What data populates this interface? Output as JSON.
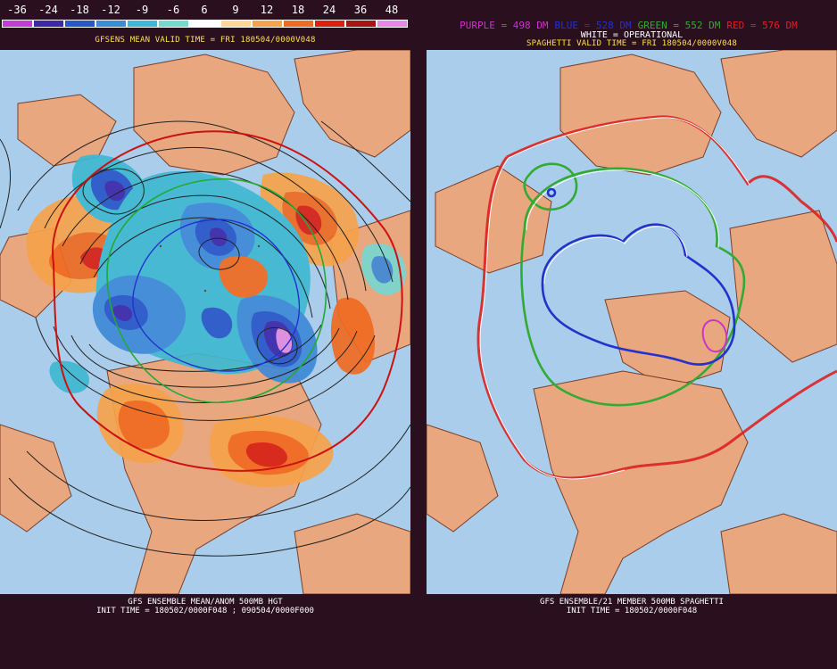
{
  "left": {
    "colorbar": {
      "labels": [
        "-36",
        "-24",
        "-18",
        "-12",
        "-9",
        "-6",
        "6",
        "9",
        "12",
        "18",
        "24",
        "36",
        "48"
      ],
      "colors": [
        "#c43cd6",
        "#3c28a8",
        "#2a56c8",
        "#3f89d8",
        "#3fb8d2",
        "#79d7d0",
        "#ffffff",
        "#fbd7a0",
        "#f7a24b",
        "#f06b22",
        "#d82016",
        "#a81414",
        "#e28be0"
      ]
    },
    "title": "GFSENS MEAN VALID TIME = FRI 180504/0000V048",
    "footer_line1": "GFS ENSEMBLE MEAN/ANOM 500MB HGT",
    "footer_line2": "INIT TIME = 180502/0000F048 ; 090504/0000F000"
  },
  "right": {
    "legend": [
      {
        "text": "PURPLE = 498 DM",
        "color": "#cc33cc"
      },
      {
        "text": "BLUE = 528 DM",
        "color": "#2233cc"
      },
      {
        "text": "GREEN = 552 DM",
        "color": "#33aa33"
      },
      {
        "text": "RED = 576 DM",
        "color": "#dd2222"
      }
    ],
    "operational_label": "WHITE = OPERATIONAL",
    "title": "SPAGHETTI VALID TIME = FRI 180504/0000V048",
    "footer_line1": "GFS ENSEMBLE/21 MEMBER 500MB SPAGHETTI",
    "footer_line2": "INIT TIME = 180502/0000F048"
  },
  "colors": {
    "background": "#2a0f1e",
    "ocean": "#a9cdea",
    "land": "#e8a77e",
    "coast": "#7a3f2a",
    "title_yellow": "#ffe24a"
  }
}
